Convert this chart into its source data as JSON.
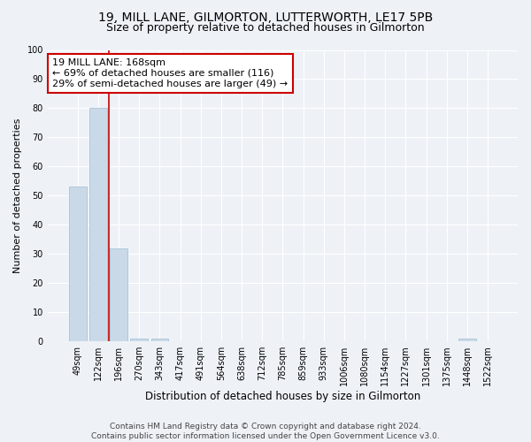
{
  "title1": "19, MILL LANE, GILMORTON, LUTTERWORTH, LE17 5PB",
  "title2": "Size of property relative to detached houses in Gilmorton",
  "xlabel": "Distribution of detached houses by size in Gilmorton",
  "ylabel": "Number of detached properties",
  "categories": [
    "49sqm",
    "122sqm",
    "196sqm",
    "270sqm",
    "343sqm",
    "417sqm",
    "491sqm",
    "564sqm",
    "638sqm",
    "712sqm",
    "785sqm",
    "859sqm",
    "933sqm",
    "1006sqm",
    "1080sqm",
    "1154sqm",
    "1227sqm",
    "1301sqm",
    "1375sqm",
    "1448sqm",
    "1522sqm"
  ],
  "values": [
    53,
    80,
    32,
    1,
    1,
    0,
    0,
    0,
    0,
    0,
    0,
    0,
    0,
    0,
    0,
    0,
    0,
    0,
    0,
    1,
    0
  ],
  "bar_color": "#c9d9e8",
  "bar_edge_color": "#a8c4d8",
  "vline_x": 1.5,
  "vline_color": "#cc0000",
  "annotation_text": "19 MILL LANE: 168sqm\n← 69% of detached houses are smaller (116)\n29% of semi-detached houses are larger (49) →",
  "annotation_box_color": "#ffffff",
  "annotation_box_edge_color": "#cc0000",
  "ylim": [
    0,
    100
  ],
  "yticks": [
    0,
    10,
    20,
    30,
    40,
    50,
    60,
    70,
    80,
    90,
    100
  ],
  "footer1": "Contains HM Land Registry data © Crown copyright and database right 2024.",
  "footer2": "Contains public sector information licensed under the Open Government Licence v3.0.",
  "background_color": "#eef2f7",
  "grid_color": "#ffffff",
  "title1_fontsize": 10,
  "title2_fontsize": 9,
  "xlabel_fontsize": 8.5,
  "ylabel_fontsize": 8,
  "tick_fontsize": 7,
  "annotation_fontsize": 8
}
